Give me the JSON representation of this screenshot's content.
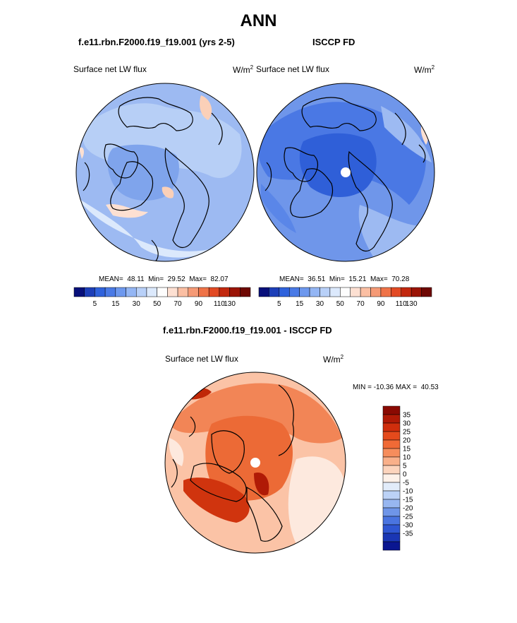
{
  "page": {
    "title": "ANN"
  },
  "panels": [
    {
      "subtitle": "f.e11.rbn.F2000.f19_f19.001 (yrs 2-5)",
      "label": "Surface net LW flux",
      "units": "W/m",
      "units_exp": "2",
      "stats": "MEAN=  48.11  Min=  29.52  Max=  82.07"
    },
    {
      "subtitle": "ISCCP FD",
      "label": "Surface net LW flux",
      "units": "W/m",
      "units_exp": "2",
      "stats": "MEAN=  36.51  Min=  15.21  Max=  70.28"
    }
  ],
  "colorbar_top": {
    "tick_labels": [
      "5",
      "15",
      "30",
      "50",
      "70",
      "90",
      "110",
      "130"
    ],
    "colors": [
      "#08107a",
      "#1d3fb8",
      "#2f62dc",
      "#4a7ae6",
      "#6d98ee",
      "#94b6f4",
      "#b8d0f8",
      "#dce9fc",
      "#fdfdfd",
      "#fde0d2",
      "#fbbfa3",
      "#f59a76",
      "#ef7348",
      "#e24a24",
      "#c2280e",
      "#9b1406",
      "#6e0803"
    ]
  },
  "diff_panel": {
    "subtitle": "f.e11.rbn.F2000.f19_f19.001 - ISCCP FD",
    "label": "Surface net LW flux",
    "units": "W/m",
    "units_exp": "2",
    "stats": "MIN = -10.36 MAX =  40.53"
  },
  "colorbar_diff": {
    "tick_labels": [
      "35",
      "30",
      "25",
      "20",
      "15",
      "10",
      "5",
      "0",
      "-5",
      "-10",
      "-15",
      "-20",
      "-25",
      "-30",
      "-35"
    ],
    "colors": [
      "#8a0a02",
      "#b01a06",
      "#d02e0c",
      "#e44a1c",
      "#f06a36",
      "#f68d5c",
      "#f9b08a",
      "#fcd4bd",
      "#fdf1e9",
      "#e2ecfa",
      "#bcd2f6",
      "#97b6f0",
      "#6f95e8",
      "#4a74e0",
      "#2f56d2",
      "#1a36b4",
      "#0a1690"
    ]
  },
  "colors": {
    "pole_marker": "#ffffff",
    "coast": "#000000"
  }
}
